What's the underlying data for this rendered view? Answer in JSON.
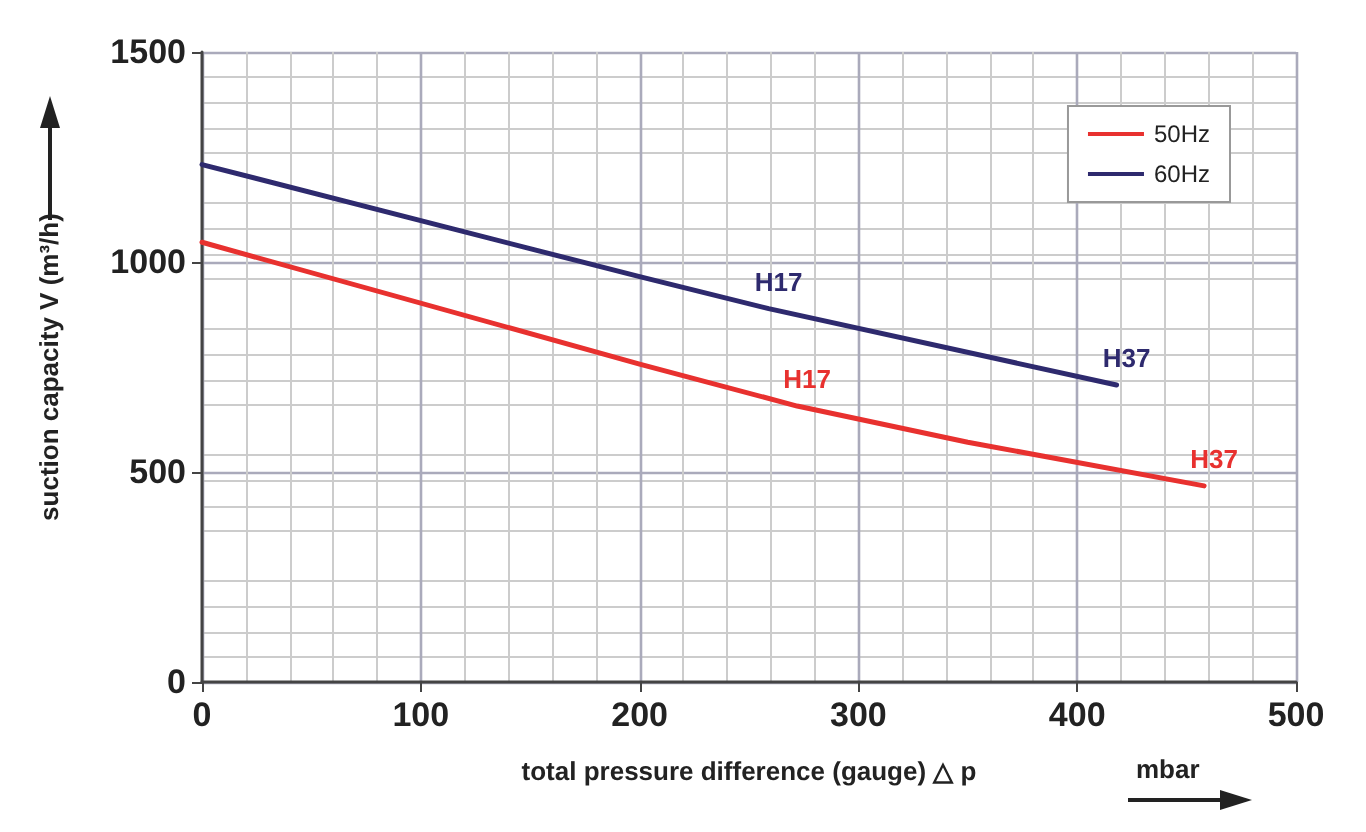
{
  "chart_data": {
    "type": "line",
    "xlabel": "total pressure difference (gauge) △ p",
    "ylabel": "suction capacity V (m³/h)",
    "series": [
      {
        "name": "50Hz",
        "color": "#e8312f",
        "x": [
          0,
          200,
          272,
          350,
          458
        ],
        "values": [
          1047,
          757,
          657,
          571,
          467
        ]
      },
      {
        "name": "60Hz",
        "color": "#2e2a6e",
        "x": [
          0,
          200,
          259,
          418
        ],
        "values": [
          1232,
          965,
          889,
          707
        ]
      }
    ],
    "annotations": [
      {
        "text": "H17",
        "x": 272,
        "y": 657
      },
      {
        "text": "H37",
        "x": 458,
        "y": 467
      },
      {
        "text": "H17",
        "x": 259,
        "y": 889
      },
      {
        "text": "H37",
        "x": 418,
        "y": 707
      },
      "mbar"
    ],
    "xlim": [
      0,
      500
    ],
    "xticks": [
      0,
      100,
      200,
      300,
      400,
      500
    ],
    "ylim": [
      0,
      1500
    ],
    "yticks": [
      0,
      500,
      1000,
      1500
    ],
    "grid": true,
    "legend": "top right",
    "marker": "none",
    "line_style": "solid"
  }
}
